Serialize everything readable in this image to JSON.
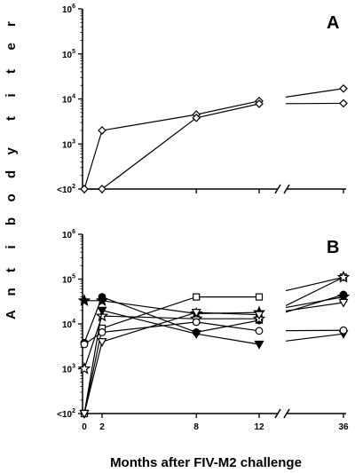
{
  "figure": {
    "ylabel": "Antibody titer",
    "xlabel": "Months after FIV-M2 challenge"
  },
  "chart_data": [
    {
      "type": "line",
      "panel": "A",
      "yscale": "log",
      "y_ticks": [
        {
          "value": 100,
          "label": "<10",
          "sup": "2"
        },
        {
          "value": 1000,
          "label": "10",
          "sup": "3"
        },
        {
          "value": 10000,
          "label": "10",
          "sup": "4"
        },
        {
          "value": 100000,
          "label": "10",
          "sup": "5"
        },
        {
          "value": 1000000,
          "label": "10",
          "sup": "6"
        }
      ],
      "x_tick_labels": [],
      "axis_break": true,
      "series": [
        {
          "marker": "diamond-open",
          "x": [
            0,
            2,
            8,
            12,
            36
          ],
          "y": [
            100,
            2000,
            4500,
            9000,
            17000
          ]
        },
        {
          "marker": "diamond-open",
          "x": [
            0,
            2,
            8,
            12,
            36
          ],
          "y": [
            100,
            100,
            3800,
            7800,
            8000
          ]
        }
      ]
    },
    {
      "type": "line",
      "panel": "B",
      "yscale": "log",
      "y_ticks": [
        {
          "value": 100,
          "label": "<10",
          "sup": "2"
        },
        {
          "value": 1000,
          "label": "10",
          "sup": "3"
        },
        {
          "value": 10000,
          "label": "10",
          "sup": "4"
        },
        {
          "value": 100000,
          "label": "10",
          "sup": "5"
        },
        {
          "value": 1000000,
          "label": "10",
          "sup": "6"
        }
      ],
      "x_tick_labels": [
        "0",
        "2",
        "8",
        "12",
        "36"
      ],
      "axis_break": true,
      "series": [
        {
          "marker": "square-open",
          "x": [
            0,
            2,
            8,
            12,
            36
          ],
          "y": [
            100,
            8000,
            40000,
            40000,
            110000
          ]
        },
        {
          "marker": "circle-filled",
          "x": [
            0,
            2,
            8,
            12,
            36
          ],
          "y": [
            3800,
            40000,
            6500,
            12000,
            45000
          ]
        },
        {
          "marker": "star-filled",
          "x": [
            0,
            2,
            8,
            12,
            36
          ],
          "y": [
            33000,
            33000,
            17000,
            18000,
            40000
          ]
        },
        {
          "marker": "star-open",
          "x": [
            0,
            2,
            8,
            12,
            36
          ],
          "y": [
            1000,
            15000,
            13000,
            13000,
            110000
          ]
        },
        {
          "marker": "triangle-down-filled",
          "x": [
            0,
            2,
            8,
            12,
            36
          ],
          "y": [
            100,
            20000,
            6000,
            3500,
            6000
          ]
        },
        {
          "marker": "triangle-down-open",
          "x": [
            0,
            2,
            8,
            12,
            36
          ],
          "y": [
            100,
            4000,
            18000,
            16000,
            30000
          ]
        },
        {
          "marker": "circle-open",
          "x": [
            0,
            2,
            8,
            12,
            36
          ],
          "y": [
            3500,
            6500,
            11000,
            7000,
            7200
          ]
        }
      ]
    }
  ]
}
